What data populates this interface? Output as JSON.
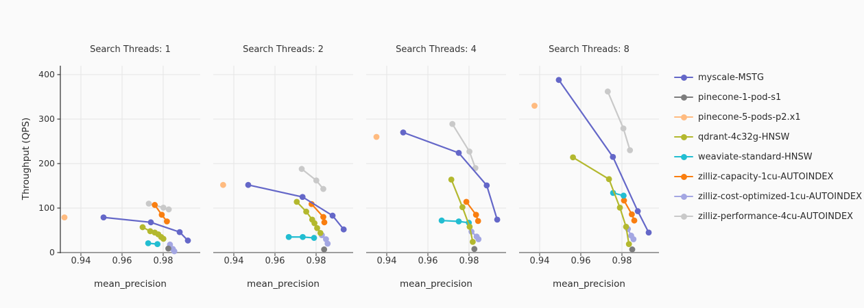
{
  "colors": {
    "background": "#fafafa",
    "grid": "#e4e4e4",
    "axis_bottom": "#9e9e9e",
    "axis_left": "#3a3a3a",
    "tick": "#555555",
    "text": "#333333"
  },
  "chart_data": {
    "type": "line",
    "title": "",
    "facet_variable": "Search Threads",
    "facet_titles": [
      "Search Threads: 1",
      "Search Threads: 2",
      "Search Threads: 4",
      "Search Threads: 8"
    ],
    "xlabel": "mean_precision",
    "ylabel": "Throughput (QPS)",
    "x_domain": [
      0.93,
      0.998
    ],
    "y_domain": [
      0,
      420
    ],
    "x_ticks": [
      0.94,
      0.96,
      0.98
    ],
    "x_tick_labels": [
      "0.94",
      "0.96",
      "0.98"
    ],
    "y_ticks": [
      0,
      100,
      200,
      300,
      400
    ],
    "y_tick_labels": [
      "0",
      "100",
      "200",
      "300",
      "400"
    ],
    "grid": true,
    "legend_position": "right",
    "series": [
      {
        "name": "myscale-MSTG",
        "color": "#6467c8",
        "facets": [
          [
            [
              0.951,
              79
            ],
            [
              0.974,
              68
            ],
            [
              0.988,
              46
            ],
            [
              0.992,
              27
            ]
          ],
          [
            [
              0.947,
              152
            ],
            [
              0.9734,
              125
            ],
            [
              0.988,
              83
            ],
            [
              0.9934,
              52
            ]
          ],
          [
            [
              0.948,
              270
            ],
            [
              0.975,
              224
            ],
            [
              0.9886,
              151
            ],
            [
              0.9937,
              74
            ]
          ],
          [
            [
              0.9493,
              388
            ],
            [
              0.9756,
              215
            ],
            [
              0.9877,
              93
            ],
            [
              0.993,
              45
            ]
          ]
        ]
      },
      {
        "name": "pinecone-1-pod-s1",
        "color": "#7d7d7d",
        "facets": [
          [
            [
              0.9825,
              9
            ]
          ],
          [
            [
              0.9839,
              7
            ]
          ],
          [
            [
              0.9826,
              8
            ]
          ],
          [
            [
              0.985,
              7
            ]
          ]
        ]
      },
      {
        "name": "pinecone-5-pods-p2.x1",
        "color": "#ffbb80",
        "facets": [
          [
            [
              0.932,
              79
            ]
          ],
          [
            [
              0.9348,
              152
            ]
          ],
          [
            [
              0.935,
              260
            ]
          ],
          [
            [
              0.9375,
              330
            ]
          ]
        ]
      },
      {
        "name": "qdrant-4c32g-HNSW",
        "color": "#b3b82e",
        "facets": [
          [
            [
              0.97,
              57
            ],
            [
              0.9737,
              48
            ],
            [
              0.9759,
              45
            ],
            [
              0.9776,
              41
            ],
            [
              0.979,
              35
            ],
            [
              0.9801,
              31
            ]
          ],
          [
            [
              0.9706,
              114
            ],
            [
              0.9752,
              92
            ],
            [
              0.9781,
              74
            ],
            [
              0.9792,
              66
            ],
            [
              0.9805,
              55
            ],
            [
              0.9821,
              44
            ]
          ],
          [
            [
              0.9714,
              164
            ],
            [
              0.9768,
              102
            ],
            [
              0.9803,
              58
            ],
            [
              0.9818,
              24
            ]
          ],
          [
            [
              0.9562,
              214
            ],
            [
              0.9737,
              165
            ],
            [
              0.979,
              101
            ],
            [
              0.982,
              58
            ],
            [
              0.9834,
              19
            ]
          ]
        ]
      },
      {
        "name": "weaviate-standard-HNSW",
        "color": "#22bdd1",
        "facets": [
          [
            [
              0.9727,
              21
            ],
            [
              0.9772,
              19
            ]
          ],
          [
            [
              0.9667,
              35
            ],
            [
              0.9735,
              35
            ],
            [
              0.979,
              33
            ]
          ],
          [
            [
              0.9667,
              72
            ],
            [
              0.975,
              70
            ],
            [
              0.9799,
              67
            ]
          ],
          [
            [
              0.9757,
              134
            ],
            [
              0.9808,
              128
            ]
          ]
        ]
      },
      {
        "name": "zilliz-capacity-1cu-AUTOINDEX",
        "color": "#f97e10",
        "facets": [
          [
            [
              0.9759,
              107
            ],
            [
              0.9793,
              85
            ],
            [
              0.9818,
              70
            ]
          ],
          [
            [
              0.9778,
              109
            ],
            [
              0.9835,
              80
            ],
            [
              0.984,
              68
            ]
          ],
          [
            [
              0.9787,
              114
            ],
            [
              0.9834,
              85
            ],
            [
              0.9844,
              71
            ]
          ],
          [
            [
              0.981,
              117
            ],
            [
              0.9848,
              86
            ],
            [
              0.986,
              72
            ]
          ]
        ]
      },
      {
        "name": "zilliz-cost-optimized-1cu-AUTOINDEX",
        "color": "#a3a6e2",
        "facets": [
          [
            [
              0.9833,
              18
            ],
            [
              0.9847,
              8
            ],
            [
              0.9854,
              3
            ]
          ],
          [
            [
              0.9828,
              39
            ],
            [
              0.9848,
              30
            ],
            [
              0.9856,
              20
            ]
          ],
          [
            [
              0.9812,
              47
            ],
            [
              0.9837,
              36
            ],
            [
              0.9846,
              30
            ]
          ],
          [
            [
              0.9829,
              53
            ],
            [
              0.9845,
              38
            ],
            [
              0.9856,
              30
            ]
          ]
        ]
      },
      {
        "name": "zilliz-performance-4cu-AUTOINDEX",
        "color": "#c9c9c9",
        "facets": [
          [
            [
              0.973,
              110
            ],
            [
              0.9801,
              101
            ],
            [
              0.9827,
              97
            ]
          ],
          [
            [
              0.973,
              188
            ],
            [
              0.9801,
              162
            ],
            [
              0.9835,
              143
            ]
          ],
          [
            [
              0.9719,
              289
            ],
            [
              0.9802,
              227
            ],
            [
              0.9831,
              190
            ]
          ],
          [
            [
              0.9731,
              362
            ],
            [
              0.9807,
              279
            ],
            [
              0.9839,
              230
            ]
          ]
        ]
      }
    ]
  }
}
